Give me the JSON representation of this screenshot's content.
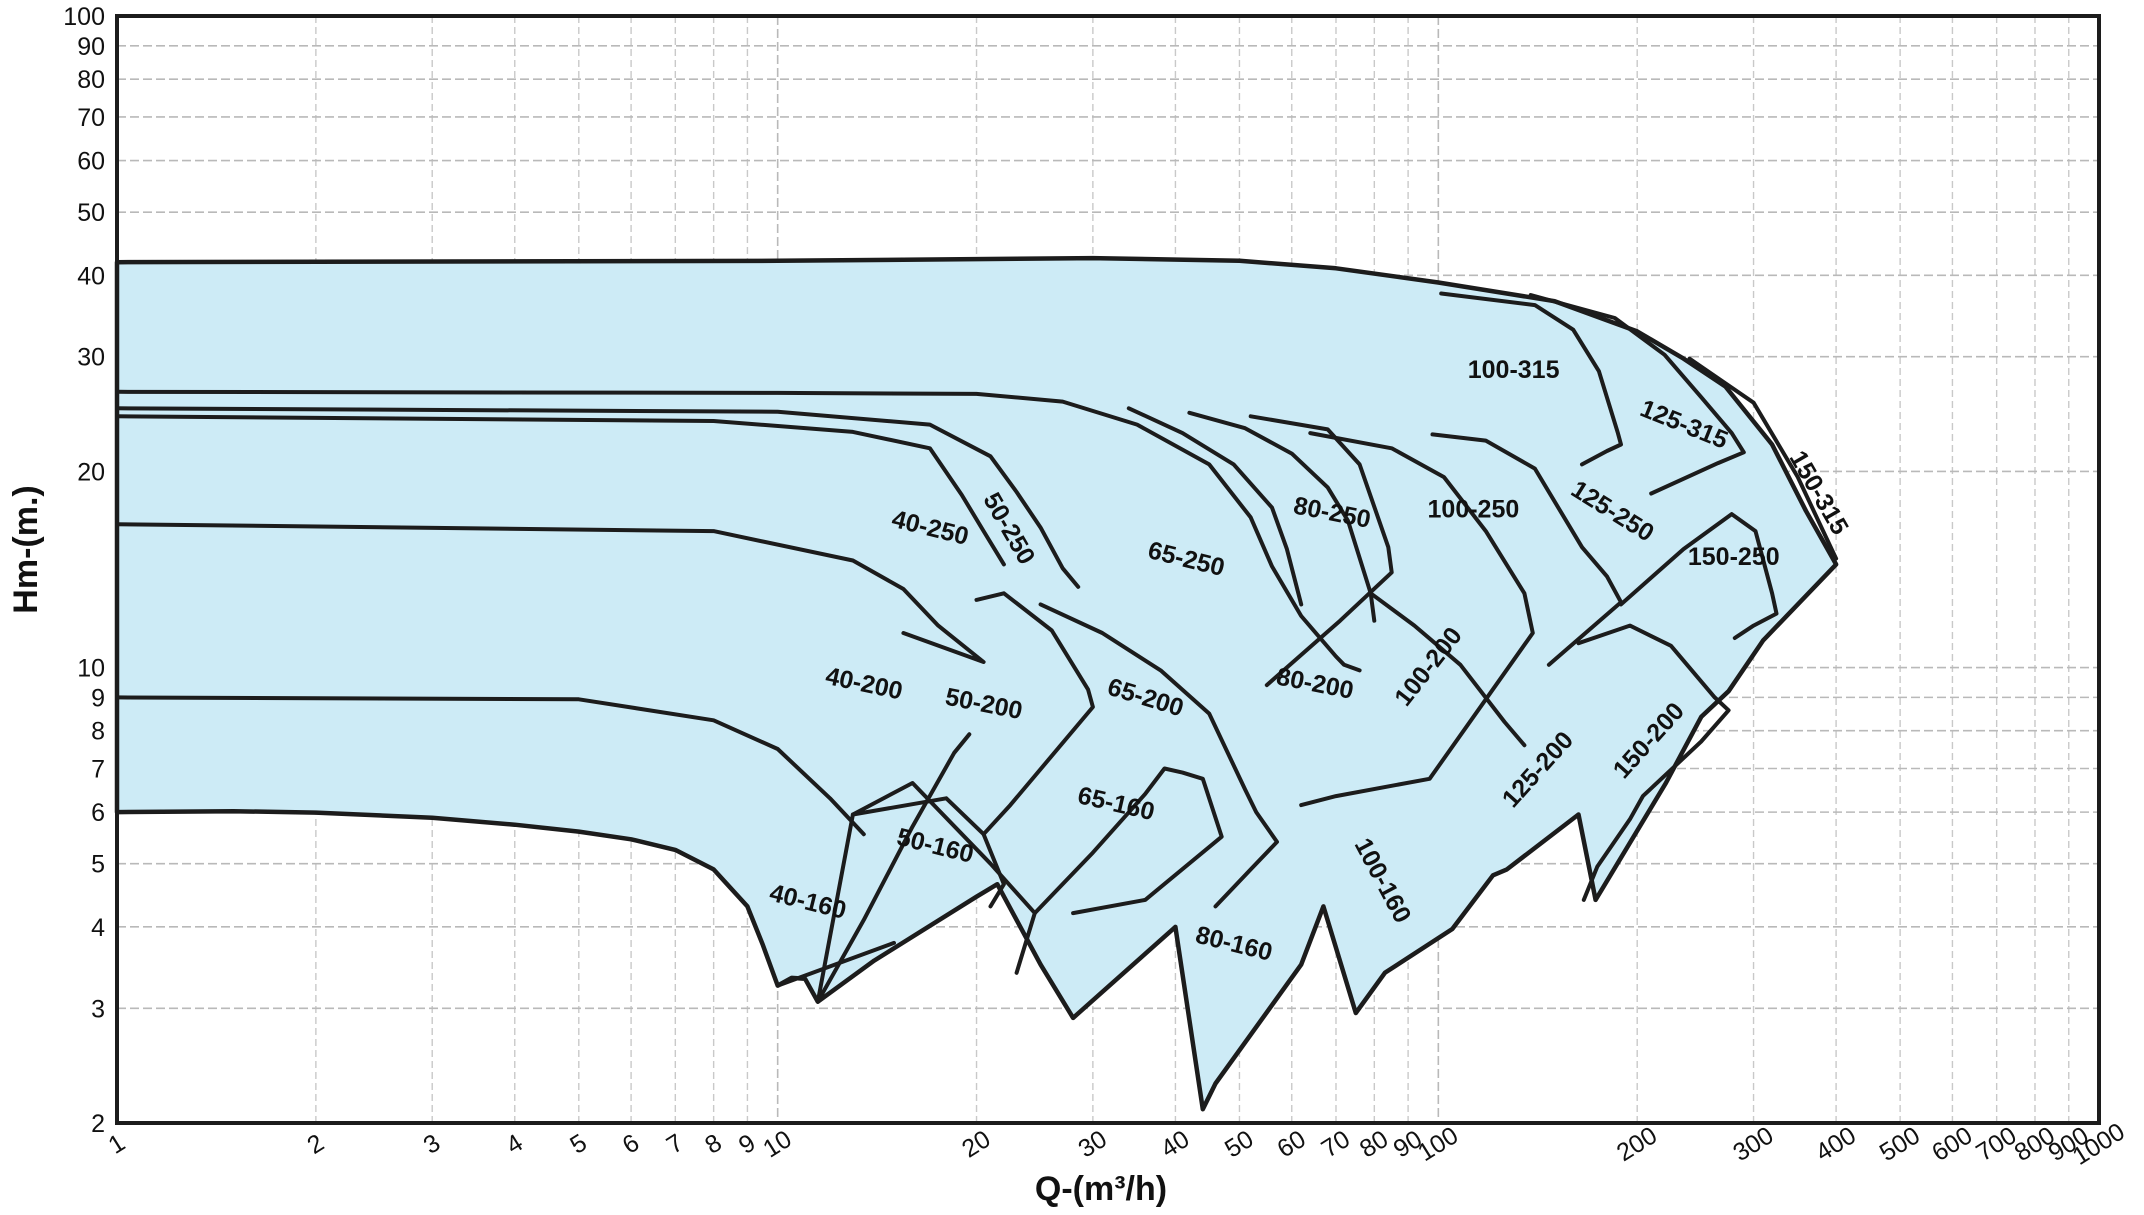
{
  "chart_data": {
    "type": "area",
    "title": "",
    "xlabel": "Q-(m³/h)",
    "ylabel": "Hm-(m.)",
    "x_scale": "log",
    "y_scale": "log",
    "xlim": [
      1,
      1000
    ],
    "ylim": [
      2,
      100
    ],
    "grid": true,
    "x_ticks": [
      1,
      2,
      3,
      4,
      5,
      6,
      7,
      8,
      9,
      10,
      20,
      30,
      40,
      50,
      60,
      70,
      80,
      90,
      100,
      200,
      300,
      400,
      500,
      600,
      700,
      800,
      900,
      1000
    ],
    "x_tick_labels": [
      "1",
      "2",
      "3",
      "4",
      "5",
      "6",
      "7",
      "8",
      "9",
      "10",
      "20",
      "30",
      "40",
      "50",
      "60",
      "70",
      "80",
      "90",
      "100",
      "200",
      "300",
      "400",
      "500",
      "600",
      "700",
      "800",
      "900",
      "1000"
    ],
    "y_ticks": [
      2,
      3,
      4,
      5,
      6,
      7,
      8,
      9,
      10,
      20,
      30,
      40,
      50,
      60,
      70,
      80,
      90,
      100
    ],
    "y_tick_labels": [
      "2",
      "3",
      "4",
      "5",
      "6",
      "7",
      "8",
      "9",
      "10",
      "20",
      "30",
      "40",
      "50",
      "60",
      "70",
      "80",
      "90",
      "100"
    ],
    "colors": {
      "fill": "#cdebf6",
      "outline": "#1c1c1c",
      "grid": "#b9b9b9"
    },
    "envelope": [
      [
        1,
        6
      ],
      [
        1.5,
        6.02
      ],
      [
        2,
        5.99
      ],
      [
        3,
        5.88
      ],
      [
        4,
        5.74
      ],
      [
        5,
        5.6
      ],
      [
        6,
        5.45
      ],
      [
        7,
        5.25
      ],
      [
        8,
        4.9
      ],
      [
        9,
        4.3
      ],
      [
        9.5,
        3.75
      ],
      [
        10,
        3.25
      ],
      [
        10.5,
        3.34
      ],
      [
        11,
        3.33
      ],
      [
        11.5,
        3.07
      ],
      [
        14,
        3.55
      ],
      [
        20,
        4.45
      ],
      [
        21.5,
        4.65
      ],
      [
        25,
        3.5
      ],
      [
        28,
        2.9
      ],
      [
        40,
        4.0
      ],
      [
        44,
        2.1
      ],
      [
        46,
        2.3
      ],
      [
        62,
        3.5
      ],
      [
        67,
        4.3
      ],
      [
        75,
        2.95
      ],
      [
        83,
        3.4
      ],
      [
        105,
        3.97
      ],
      [
        121,
        4.8
      ],
      [
        127,
        4.9
      ],
      [
        163,
        5.95
      ],
      [
        173,
        4.4
      ],
      [
        221,
        6.65
      ],
      [
        250,
        8.4
      ],
      [
        275,
        9.2
      ],
      [
        310,
        11.0
      ],
      [
        400,
        14.4
      ],
      [
        360,
        17.4
      ],
      [
        320,
        22.0
      ],
      [
        272,
        27.0
      ],
      [
        235,
        29.8
      ],
      [
        200,
        32.8
      ],
      [
        150,
        36.5
      ],
      [
        100,
        39.0
      ],
      [
        70,
        41.0
      ],
      [
        50,
        42.1
      ],
      [
        30,
        42.5
      ],
      [
        10,
        42.1
      ],
      [
        1,
        41.9
      ]
    ],
    "boundaries": [
      [
        [
          1,
          26.5
        ],
        [
          10,
          26.4
        ],
        [
          20,
          26.3
        ],
        [
          27,
          25.6
        ],
        [
          35,
          23.6
        ],
        [
          45,
          20.5
        ],
        [
          52,
          17.0
        ],
        [
          56,
          14.3
        ],
        [
          62,
          12.0
        ],
        [
          70,
          10.4
        ],
        [
          72,
          10.1
        ],
        [
          76,
          9.9
        ]
      ],
      [
        [
          1,
          25.0
        ],
        [
          10,
          24.7
        ],
        [
          17,
          23.6
        ],
        [
          21,
          21.1
        ],
        [
          23,
          18.6
        ],
        [
          25,
          16.4
        ],
        [
          27,
          14.2
        ],
        [
          28.5,
          13.3
        ]
      ],
      [
        [
          1,
          24.3
        ],
        [
          8,
          23.9
        ],
        [
          13,
          23.0
        ],
        [
          17,
          21.7
        ],
        [
          19,
          18.4
        ],
        [
          20.5,
          16.2
        ],
        [
          22,
          14.4
        ]
      ],
      [
        [
          1,
          16.6
        ],
        [
          8,
          16.2
        ],
        [
          13,
          14.6
        ],
        [
          15.5,
          13.2
        ],
        [
          17.5,
          11.6
        ],
        [
          20.5,
          10.2
        ],
        [
          15.5,
          11.3
        ]
      ],
      [
        [
          1,
          9.0
        ],
        [
          5,
          8.94
        ],
        [
          8,
          8.3
        ],
        [
          10,
          7.5
        ],
        [
          12,
          6.3
        ],
        [
          13.5,
          5.55
        ]
      ],
      [
        [
          10,
          3.25
        ],
        [
          15,
          3.78
        ]
      ],
      [
        [
          11.5,
          3.07
        ],
        [
          13.5,
          4.1
        ],
        [
          16,
          5.7
        ],
        [
          18.5,
          7.4
        ],
        [
          19.5,
          7.9
        ]
      ],
      [
        [
          11.5,
          3.07
        ],
        [
          13,
          5.95
        ],
        [
          16,
          6.65
        ],
        [
          21,
          5.0
        ],
        [
          24.5,
          4.2
        ],
        [
          23,
          3.4
        ]
      ],
      [
        [
          13,
          5.95
        ],
        [
          18,
          6.3
        ],
        [
          20.5,
          5.55
        ],
        [
          22,
          4.65
        ],
        [
          21,
          4.3
        ]
      ],
      [
        [
          20,
          12.7
        ],
        [
          22,
          13.0
        ],
        [
          26,
          11.4
        ],
        [
          29.5,
          9.25
        ],
        [
          30,
          8.7
        ],
        [
          22.5,
          6.15
        ],
        [
          20.5,
          5.55
        ]
      ],
      [
        [
          24.5,
          4.2
        ],
        [
          30,
          5.2
        ],
        [
          36,
          6.4
        ],
        [
          38.5,
          7.0
        ],
        [
          41,
          6.9
        ],
        [
          44,
          6.75
        ],
        [
          47,
          5.5
        ],
        [
          36,
          4.4
        ],
        [
          28,
          4.2
        ]
      ],
      [
        [
          25,
          12.5
        ],
        [
          31,
          11.3
        ],
        [
          38,
          9.9
        ],
        [
          45,
          8.5
        ],
        [
          51,
          6.5
        ],
        [
          53,
          6.0
        ],
        [
          57,
          5.4
        ],
        [
          52,
          4.9
        ],
        [
          46,
          4.3
        ]
      ],
      [
        [
          34,
          25.0
        ],
        [
          41,
          22.9
        ],
        [
          49,
          20.5
        ],
        [
          56,
          17.6
        ],
        [
          59,
          15.2
        ],
        [
          62,
          12.5
        ]
      ],
      [
        [
          42,
          24.6
        ],
        [
          51,
          23.3
        ],
        [
          60,
          21.3
        ],
        [
          68,
          18.9
        ],
        [
          73,
          16.8
        ],
        [
          79,
          13.0
        ],
        [
          80,
          11.8
        ]
      ],
      [
        [
          52,
          24.3
        ],
        [
          68,
          23.2
        ],
        [
          76,
          20.5
        ],
        [
          84,
          15.3
        ],
        [
          85,
          14.0
        ],
        [
          71,
          11.8
        ],
        [
          55,
          9.4
        ]
      ],
      [
        [
          64,
          22.9
        ],
        [
          85,
          21.7
        ],
        [
          102,
          19.6
        ],
        [
          118,
          16.2
        ],
        [
          135,
          13.0
        ],
        [
          139,
          11.3
        ],
        [
          97,
          6.75
        ],
        [
          70,
          6.35
        ],
        [
          62,
          6.15
        ]
      ],
      [
        [
          98,
          22.8
        ],
        [
          118,
          22.3
        ],
        [
          140,
          20.2
        ],
        [
          165,
          15.3
        ],
        [
          180,
          13.8
        ],
        [
          189,
          12.6
        ],
        [
          147,
          10.1
        ]
      ],
      [
        [
          79,
          13.0
        ],
        [
          92,
          11.6
        ],
        [
          108,
          10.1
        ],
        [
          126,
          8.25
        ],
        [
          135,
          7.6
        ]
      ],
      [
        [
          101,
          37.5
        ],
        [
          140,
          36.0
        ],
        [
          160,
          33.0
        ],
        [
          175,
          28.5
        ],
        [
          187,
          22.9
        ],
        [
          189,
          22.0
        ],
        [
          180,
          21.5
        ],
        [
          165,
          20.5
        ]
      ],
      [
        [
          138,
          37.3
        ],
        [
          185,
          34.4
        ],
        [
          220,
          30.2
        ],
        [
          250,
          26.0
        ],
        [
          278,
          22.9
        ],
        [
          290,
          21.4
        ],
        [
          265,
          20.6
        ],
        [
          210,
          18.5
        ]
      ],
      [
        [
          240,
          29.8
        ],
        [
          300,
          25.5
        ],
        [
          350,
          19.6
        ],
        [
          400,
          14.7
        ]
      ],
      [
        [
          163,
          10.9
        ],
        [
          195,
          11.6
        ],
        [
          225,
          10.8
        ],
        [
          262,
          9.0
        ],
        [
          275,
          8.6
        ],
        [
          250,
          7.7
        ],
        [
          204,
          6.35
        ],
        [
          195,
          5.85
        ],
        [
          174,
          4.95
        ],
        [
          166,
          4.4
        ]
      ],
      [
        [
          189,
          12.5
        ],
        [
          235,
          15.2
        ],
        [
          278,
          17.2
        ],
        [
          302,
          16.2
        ],
        [
          320,
          13.0
        ],
        [
          325,
          12.1
        ],
        [
          300,
          11.6
        ],
        [
          281,
          11.1
        ]
      ]
    ],
    "labels": [
      {
        "text": "100-315",
        "x": 130,
        "y": 28.5,
        "rot": 0
      },
      {
        "text": "125-315",
        "x": 235,
        "y": 23.5,
        "rot": 22
      },
      {
        "text": "150-315",
        "x": 375,
        "y": 18.5,
        "rot": 60
      },
      {
        "text": "40-250",
        "x": 17,
        "y": 16.3,
        "rot": 14
      },
      {
        "text": "50-250",
        "x": 22.3,
        "y": 16.3,
        "rot": 60
      },
      {
        "text": "65-250",
        "x": 41.5,
        "y": 14.6,
        "rot": 14
      },
      {
        "text": "80-250",
        "x": 69,
        "y": 17.2,
        "rot": 11
      },
      {
        "text": "100-250",
        "x": 113,
        "y": 17.4,
        "rot": 0
      },
      {
        "text": "125-250",
        "x": 183,
        "y": 17.3,
        "rot": 32
      },
      {
        "text": "150-250",
        "x": 280,
        "y": 14.7,
        "rot": 0
      },
      {
        "text": "40-200",
        "x": 13.5,
        "y": 9.4,
        "rot": 12
      },
      {
        "text": "50-200",
        "x": 20.5,
        "y": 8.75,
        "rot": 11
      },
      {
        "text": "65-200",
        "x": 36,
        "y": 8.95,
        "rot": 17
      },
      {
        "text": "80-200",
        "x": 65,
        "y": 9.4,
        "rot": 11
      },
      {
        "text": "100-200",
        "x": 97,
        "y": 10.0,
        "rot": -52
      },
      {
        "text": "125-200",
        "x": 142,
        "y": 6.95,
        "rot": -48
      },
      {
        "text": "150-200",
        "x": 209,
        "y": 7.7,
        "rot": -48
      },
      {
        "text": "65-160",
        "x": 32.5,
        "y": 6.15,
        "rot": 13
      },
      {
        "text": "50-160",
        "x": 17.3,
        "y": 5.3,
        "rot": 14
      },
      {
        "text": "40-160",
        "x": 11.1,
        "y": 4.35,
        "rot": 14
      },
      {
        "text": "80-160",
        "x": 49,
        "y": 3.75,
        "rot": 14
      },
      {
        "text": "100-160",
        "x": 82,
        "y": 4.7,
        "rot": 62
      }
    ]
  }
}
